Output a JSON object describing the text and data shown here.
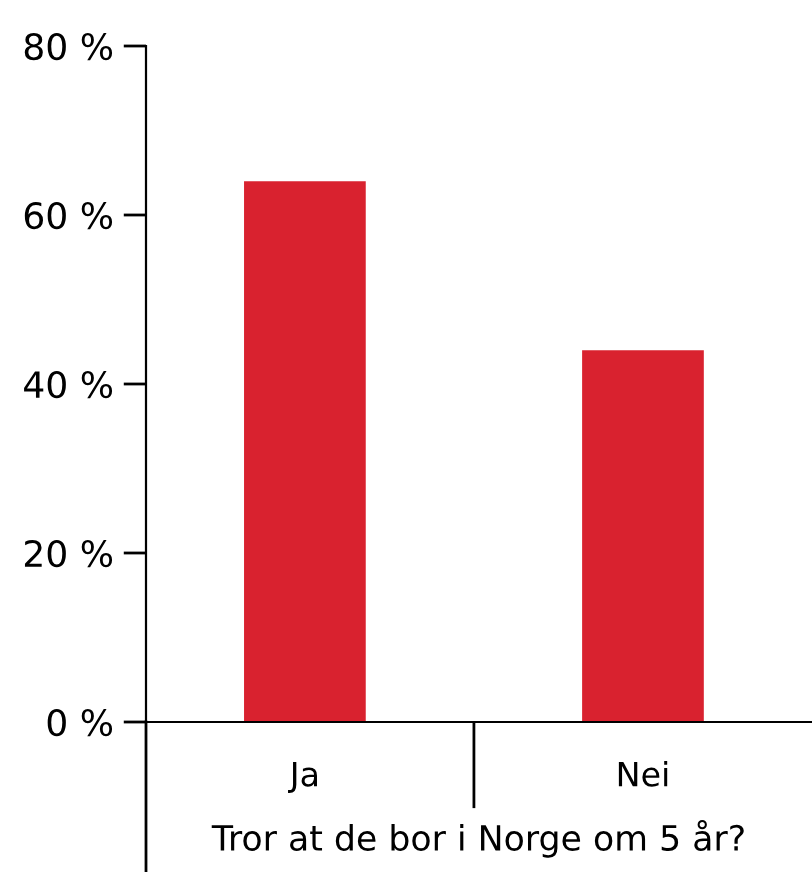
{
  "chart_data": {
    "type": "bar",
    "xlabel": "Tror at de bor i Norge om 5 år?",
    "categories": [
      "Ja",
      "Nei"
    ],
    "values": [
      64,
      44
    ],
    "color": "#d9222f",
    "ylim": [
      0,
      80
    ],
    "yticks": [
      {
        "value": 0,
        "label": "0 %"
      },
      {
        "value": 20,
        "label": "20 %"
      },
      {
        "value": 40,
        "label": "40 %"
      },
      {
        "value": 60,
        "label": "60 %"
      },
      {
        "value": 80,
        "label": "80 %"
      }
    ],
    "grid": false,
    "legend": false
  }
}
